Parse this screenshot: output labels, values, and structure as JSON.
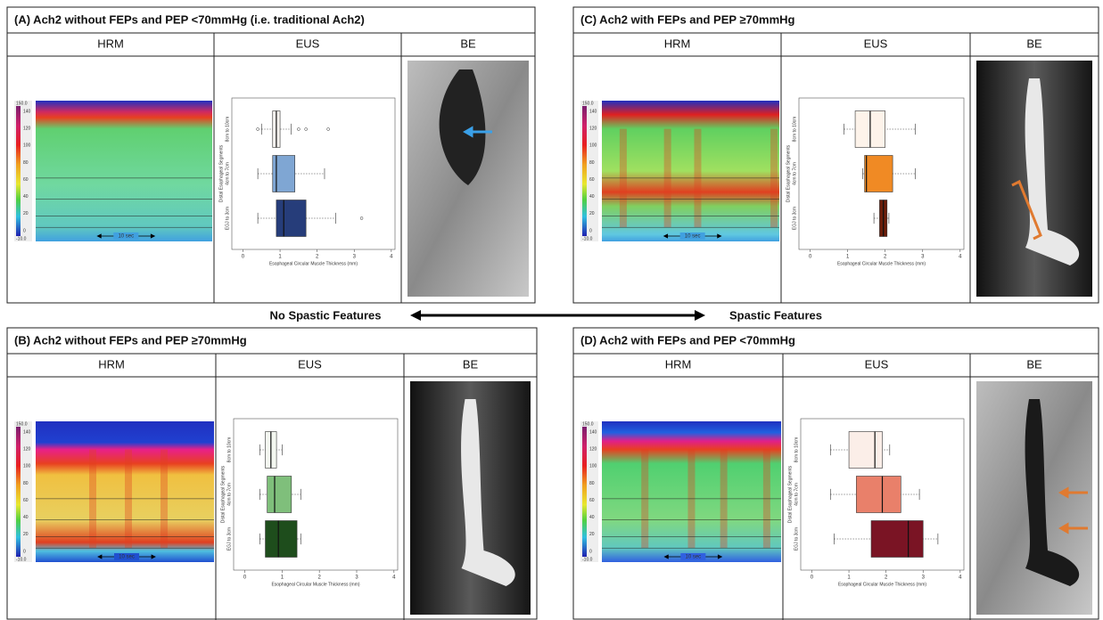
{
  "spectrum": {
    "left": "No Spastic Features",
    "right": "Spastic Features"
  },
  "panels": [
    {
      "title": "(A) Ach2 without FEPs and PEP <70mmHg (i.e. traditional Ach2)",
      "columns": [
        "HRM",
        "EUS",
        "BE"
      ],
      "hrm": {
        "scale": [
          "150.0",
          "140",
          "120",
          "100",
          "80",
          "60",
          "40",
          "20",
          "0",
          "-10.0"
        ],
        "time_label": "10 sec"
      },
      "eus": {
        "xlabel": "Esophageal Circular Muscle Thickness (mm)",
        "ylabel": "Distal Esophageal Segments",
        "categories": [
          "EGJ to 3cm",
          "4cm to 7cm",
          "8cm to 10cm"
        ],
        "xlim": [
          -0.3,
          4.1
        ],
        "xticks": [
          0,
          1,
          2,
          3,
          4
        ],
        "boxes": [
          {
            "min": 0.4,
            "q1": 0.9,
            "median": 1.1,
            "q3": 1.7,
            "max": 2.5,
            "outliers": [
              3.2
            ],
            "color": "#263d7a"
          },
          {
            "min": 0.4,
            "q1": 0.8,
            "median": 0.9,
            "q3": 1.4,
            "max": 2.2,
            "outliers": [],
            "color": "#7fa6d3"
          },
          {
            "min": 0.5,
            "q1": 0.8,
            "median": 0.9,
            "q3": 1.0,
            "max": 1.3,
            "outliers": [
              0.4,
              1.5,
              1.7,
              2.3
            ],
            "color": "#f5f2ee"
          }
        ]
      }
    },
    {
      "title": "(B) Ach2 without FEPs and PEP ≥70mmHg",
      "columns": [
        "HRM",
        "EUS",
        "BE"
      ],
      "hrm": {
        "scale": [
          "150.0",
          "140",
          "120",
          "100",
          "80",
          "60",
          "40",
          "20",
          "0",
          "-10.0"
        ],
        "time_label": "10 sec"
      },
      "eus": {
        "xlabel": "Esophageal Circular Muscle Thickness (mm)",
        "ylabel": "Distal Esophageal Segments",
        "categories": [
          "EGJ to 3cm",
          "4cm to 7cm",
          "8cm to 10cm"
        ],
        "xlim": [
          -0.3,
          4.1
        ],
        "xticks": [
          0,
          1,
          2,
          3,
          4
        ],
        "boxes": [
          {
            "min": 0.4,
            "q1": 0.55,
            "median": 0.9,
            "q3": 1.4,
            "max": 1.5,
            "outliers": [],
            "color": "#1e4d1c"
          },
          {
            "min": 0.4,
            "q1": 0.6,
            "median": 0.8,
            "q3": 1.25,
            "max": 1.5,
            "outliers": [],
            "color": "#7fbf7b"
          },
          {
            "min": 0.4,
            "q1": 0.55,
            "median": 0.7,
            "q3": 0.85,
            "max": 1.0,
            "outliers": [],
            "color": "#f3f7f0"
          }
        ]
      }
    },
    {
      "title": "(C) Ach2 with FEPs and PEP ≥70mmHg",
      "columns": [
        "HRM",
        "EUS",
        "BE"
      ],
      "hrm": {
        "scale": [
          "150.0",
          "140",
          "120",
          "100",
          "80",
          "60",
          "40",
          "20",
          "0",
          "-10.0"
        ],
        "time_label": "10 sec"
      },
      "eus": {
        "xlabel": "Esophageal Circular Muscle Thickness (mm)",
        "ylabel": "Distal Esophageal Segments",
        "categories": [
          "EGJ to 3cm",
          "4cm to 7cm",
          "8cm to 10cm"
        ],
        "xlim": [
          -0.3,
          4.1
        ],
        "xticks": [
          0,
          1,
          2,
          3,
          4
        ],
        "boxes": [
          {
            "min": 1.7,
            "q1": 1.85,
            "median": 1.95,
            "q3": 2.05,
            "max": 2.1,
            "outliers": [],
            "color": "#6b1e0a"
          },
          {
            "min": 1.4,
            "q1": 1.45,
            "median": 1.5,
            "q3": 2.2,
            "max": 2.8,
            "outliers": [],
            "color": "#f08a24"
          },
          {
            "min": 0.9,
            "q1": 1.2,
            "median": 1.6,
            "q3": 2.0,
            "max": 2.8,
            "outliers": [],
            "color": "#fdf3ea"
          }
        ]
      }
    },
    {
      "title": "(D) Ach2 with FEPs and PEP <70mmHg",
      "columns": [
        "HRM",
        "EUS",
        "BE"
      ],
      "hrm": {
        "scale": [
          "150.0",
          "140",
          "120",
          "100",
          "80",
          "60",
          "40",
          "20",
          "0",
          "-10.0"
        ],
        "time_label": "10 sec"
      },
      "eus": {
        "xlabel": "Esophageal Circular Muscle Thickness (mm)",
        "ylabel": "Distal Esophageal Segments",
        "categories": [
          "EGJ to 3cm",
          "4cm to 7cm",
          "8cm to 10cm"
        ],
        "xlim": [
          -0.3,
          4.1
        ],
        "xticks": [
          0,
          1,
          2,
          3,
          4
        ],
        "boxes": [
          {
            "min": 0.6,
            "q1": 1.6,
            "median": 2.6,
            "q3": 3.0,
            "max": 3.4,
            "outliers": [],
            "color": "#7a1424"
          },
          {
            "min": 0.5,
            "q1": 1.2,
            "median": 1.9,
            "q3": 2.4,
            "max": 2.9,
            "outliers": [],
            "color": "#e9806a"
          },
          {
            "min": 0.5,
            "q1": 1.0,
            "median": 1.7,
            "q3": 1.9,
            "max": 2.1,
            "outliers": [],
            "color": "#fbeee8"
          }
        ]
      }
    }
  ]
}
